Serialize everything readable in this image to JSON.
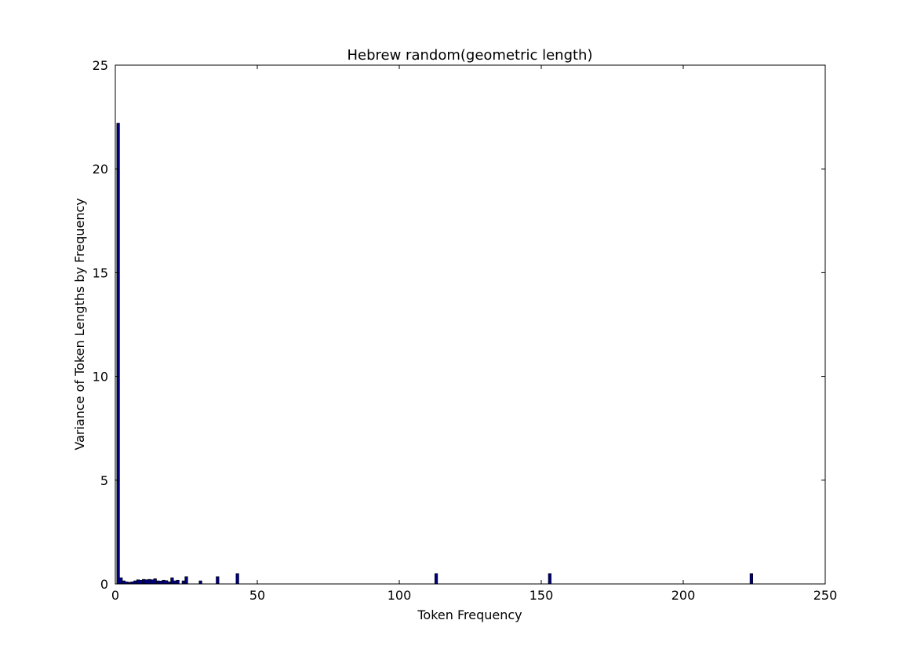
{
  "chart_data": {
    "type": "bar",
    "title": "Hebrew random(geometric length)",
    "xlabel": "Token Frequency",
    "ylabel": "Variance of Token Lengths by Frequency",
    "xlim": [
      0,
      250
    ],
    "ylim": [
      0,
      25
    ],
    "xticks": [
      "0",
      "50",
      "100",
      "150",
      "200",
      "250"
    ],
    "yticks": [
      "0",
      "5",
      "10",
      "15",
      "20",
      "25"
    ],
    "grid": false,
    "bar_color": "#00007f",
    "x": [
      1,
      2,
      3,
      4,
      5,
      6,
      7,
      8,
      9,
      10,
      11,
      12,
      13,
      14,
      15,
      16,
      17,
      18,
      19,
      20,
      21,
      22,
      24,
      25,
      30,
      36,
      43,
      113,
      153,
      224
    ],
    "values": [
      22.2,
      0.3,
      0.15,
      0.1,
      0.08,
      0.1,
      0.15,
      0.2,
      0.18,
      0.22,
      0.2,
      0.22,
      0.2,
      0.25,
      0.15,
      0.14,
      0.18,
      0.16,
      0.1,
      0.3,
      0.15,
      0.18,
      0.15,
      0.35,
      0.15,
      0.35,
      0.5,
      0.5,
      0.5,
      0.5
    ]
  }
}
